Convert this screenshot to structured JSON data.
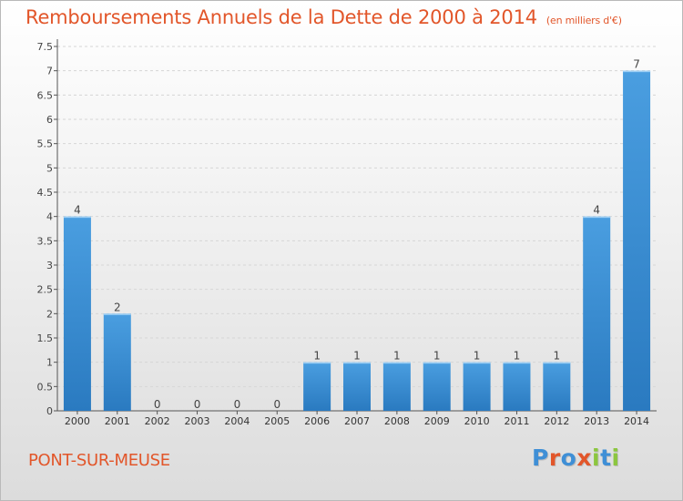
{
  "header": {
    "title": "Remboursements Annuels de la Dette de 2000 à 2014",
    "unit": "(en milliers d'€)"
  },
  "footer": {
    "commune": "PONT-SUR-MEUSE"
  },
  "logo": {
    "text": "Proxiti",
    "letters": [
      "P",
      "r",
      "o",
      "x",
      "i",
      "t",
      "i"
    ],
    "letter_colors": [
      "#3f8fd6",
      "#e2562a",
      "#3f8fd6",
      "#e2562a",
      "#8cc63f",
      "#3f8fd6",
      "#8cc63f"
    ]
  },
  "chart_data": {
    "type": "bar",
    "categories": [
      "2000",
      "2001",
      "2002",
      "2003",
      "2004",
      "2005",
      "2006",
      "2007",
      "2008",
      "2009",
      "2010",
      "2011",
      "2012",
      "2013",
      "2014"
    ],
    "values": [
      4,
      2,
      0,
      0,
      0,
      0,
      1,
      1,
      1,
      1,
      1,
      1,
      1,
      4,
      7
    ],
    "data_labels": [
      "4",
      "2",
      "0",
      "0",
      "0",
      "0",
      "1",
      "1",
      "1",
      "1",
      "1",
      "1",
      "1",
      "4",
      "7"
    ],
    "yticks": [
      "0",
      "0.5",
      "1",
      "1.5",
      "2",
      "2.5",
      "3",
      "3.5",
      "4",
      "4.5",
      "5",
      "5.5",
      "6",
      "6.5",
      "7",
      "7.5"
    ],
    "ylim": [
      0,
      7.5
    ],
    "grid": true,
    "bar_color": "#4a9ee0",
    "bar_color_dark": "#2a7ac0"
  }
}
